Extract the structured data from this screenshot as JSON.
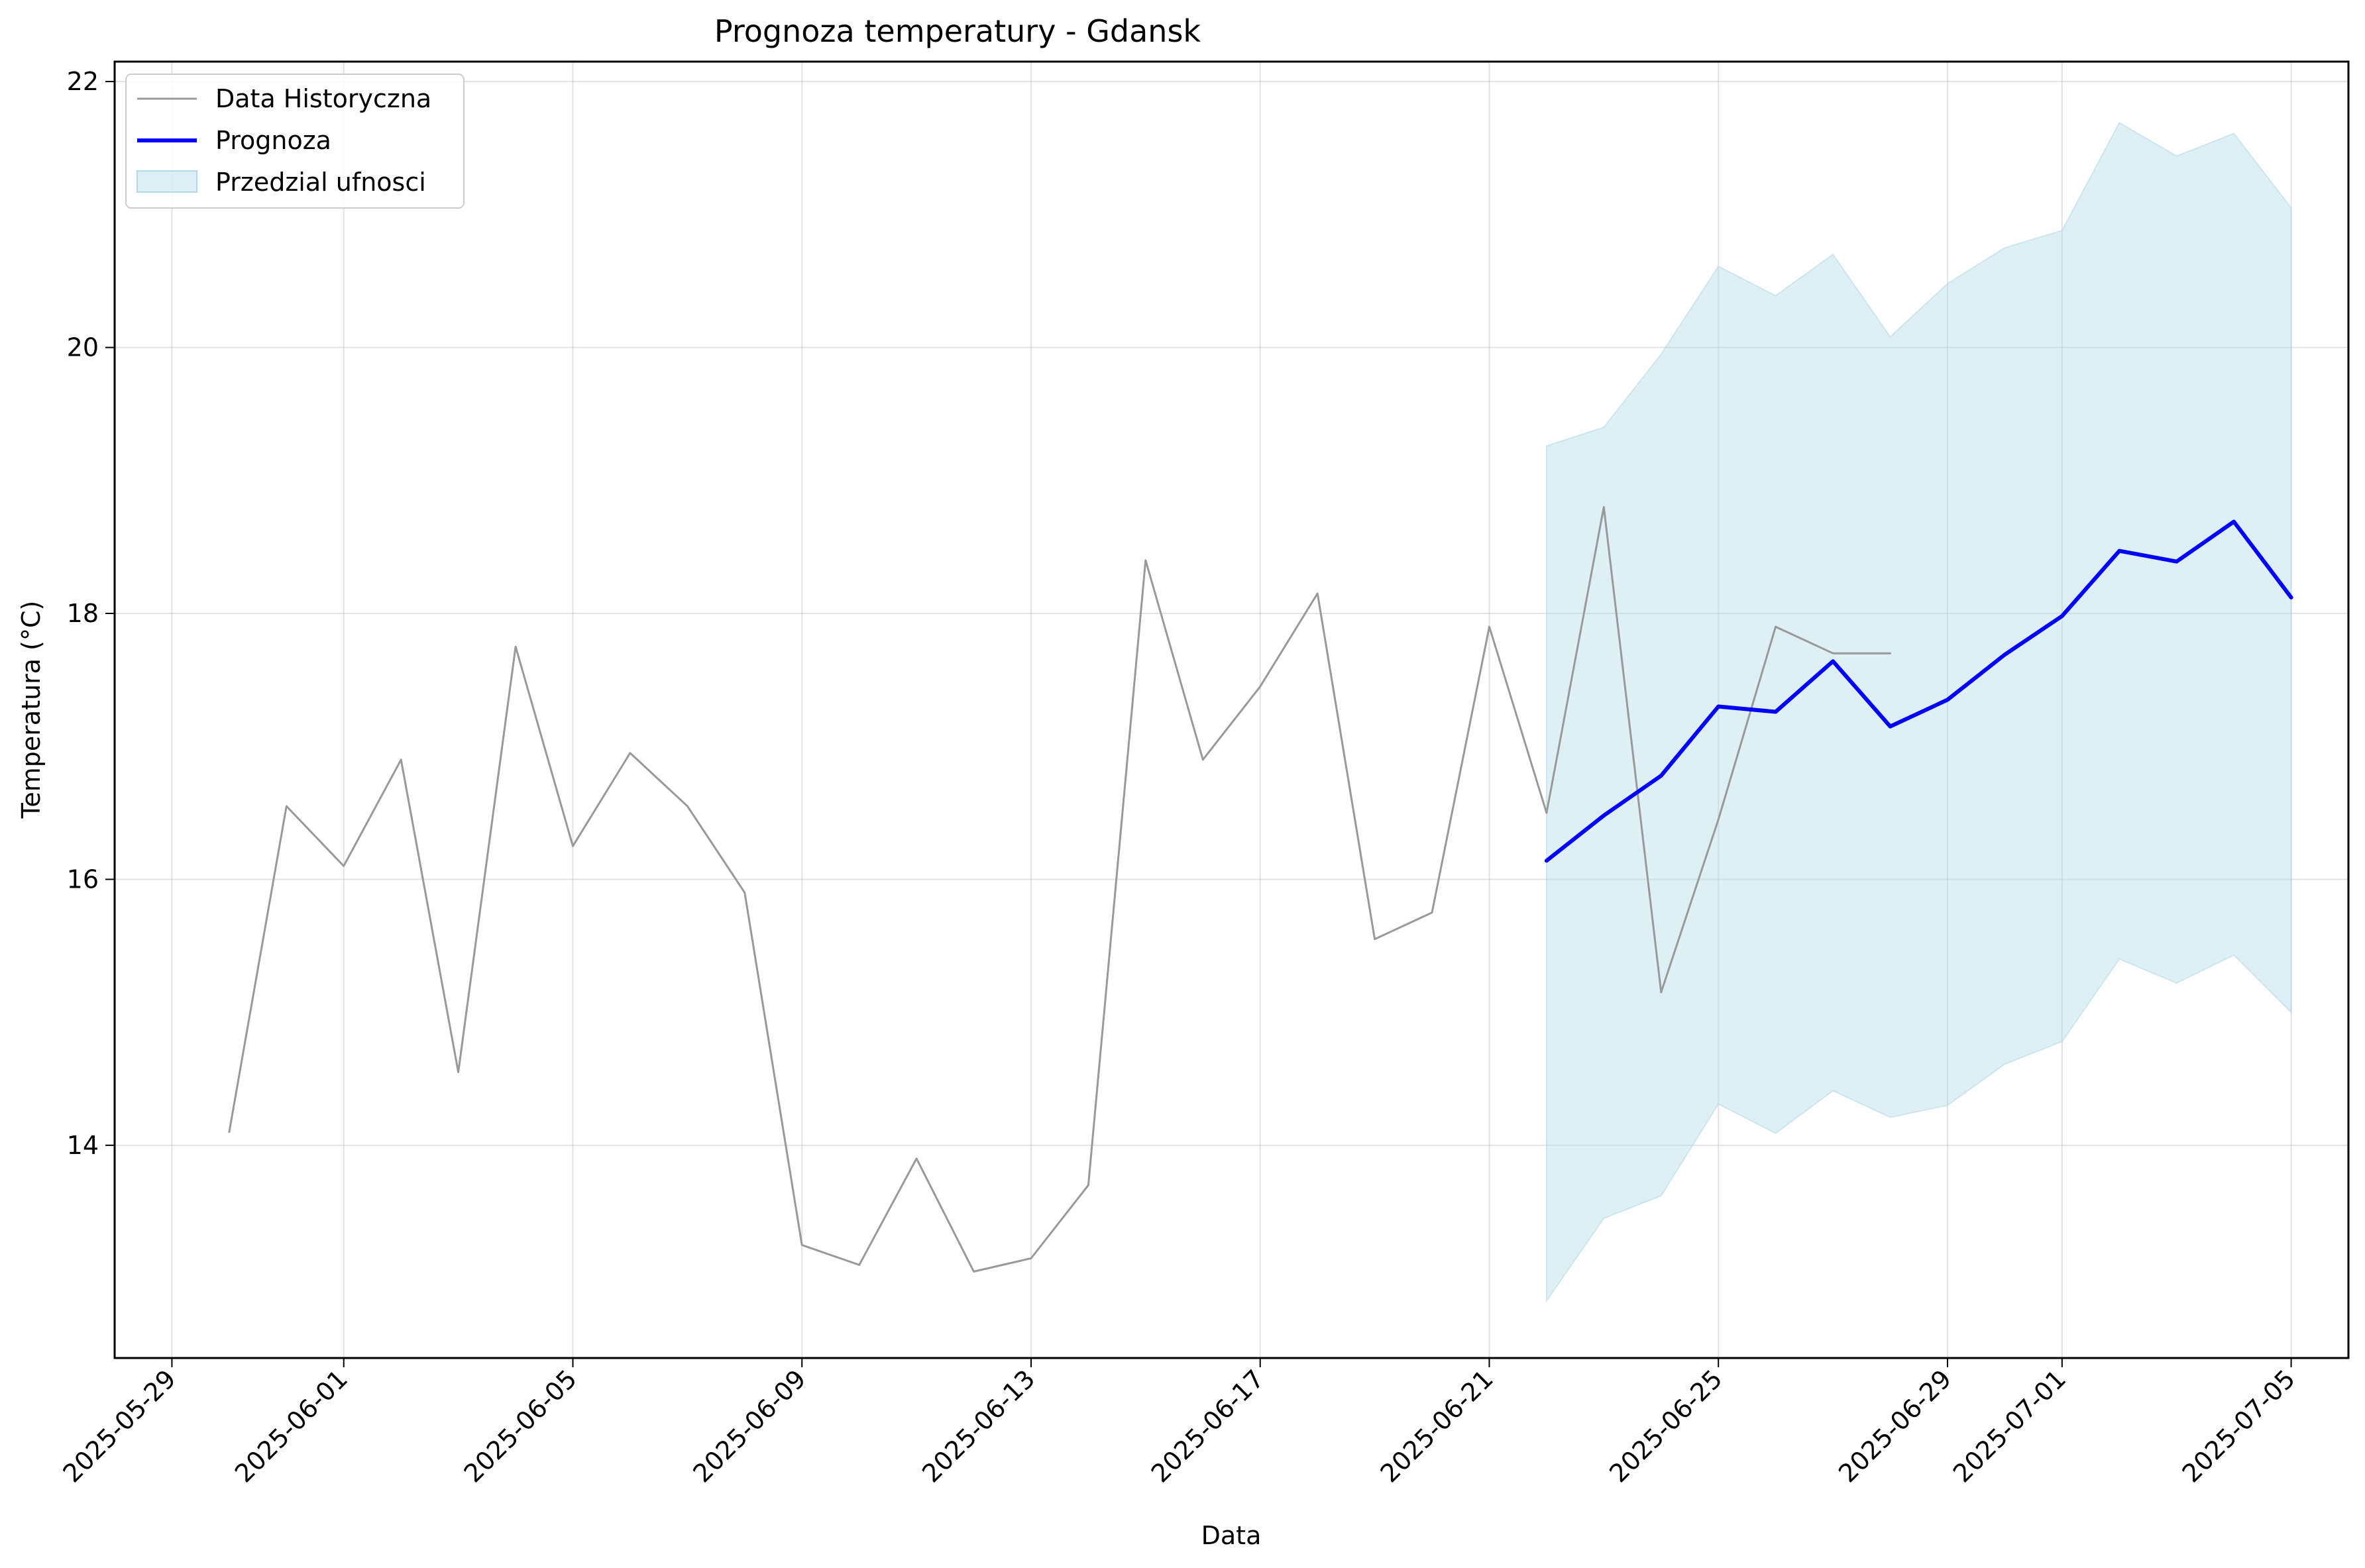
{
  "chart_data": {
    "type": "line",
    "title": "Prognoza temperatury - Gdansk",
    "xlabel": "Data",
    "ylabel": "Temperatura (°C)",
    "xlim": [
      "2025-05-28",
      "2025-07-06"
    ],
    "ylim": [
      12.4,
      22.15
    ],
    "x_ticks": [
      "2025-05-29",
      "2025-06-01",
      "2025-06-05",
      "2025-06-09",
      "2025-06-13",
      "2025-06-17",
      "2025-06-21",
      "2025-06-25",
      "2025-06-29",
      "2025-07-01",
      "2025-07-05"
    ],
    "y_ticks": [
      14,
      16,
      18,
      20,
      22
    ],
    "grid": true,
    "legend_position": "top-left",
    "colors": {
      "historical": "#999999",
      "forecast": "#0000ff",
      "confidence": "#add8e6"
    },
    "series": [
      {
        "name": "Data Historyczna",
        "kind": "line",
        "x": [
          "2025-05-30",
          "2025-05-31",
          "2025-06-01",
          "2025-06-02",
          "2025-06-03",
          "2025-06-04",
          "2025-06-05",
          "2025-06-06",
          "2025-06-07",
          "2025-06-08",
          "2025-06-09",
          "2025-06-10",
          "2025-06-11",
          "2025-06-12",
          "2025-06-13",
          "2025-06-14",
          "2025-06-15",
          "2025-06-16",
          "2025-06-17",
          "2025-06-18",
          "2025-06-19",
          "2025-06-20",
          "2025-06-21",
          "2025-06-22",
          "2025-06-23",
          "2025-06-24",
          "2025-06-25",
          "2025-06-26",
          "2025-06-27",
          "2025-06-28"
        ],
        "values": [
          14.1,
          16.55,
          16.1,
          16.9,
          14.55,
          17.75,
          16.25,
          16.95,
          16.55,
          15.9,
          13.25,
          13.1,
          13.9,
          13.05,
          13.15,
          13.7,
          18.4,
          16.9,
          17.45,
          18.15,
          15.55,
          15.75,
          17.9,
          16.5,
          18.8,
          15.15,
          16.45,
          17.9,
          17.7,
          17.7
        ]
      },
      {
        "name": "Prognoza",
        "kind": "line",
        "x": [
          "2025-06-22",
          "2025-06-23",
          "2025-06-24",
          "2025-06-25",
          "2025-06-26",
          "2025-06-27",
          "2025-06-28",
          "2025-06-29",
          "2025-06-30",
          "2025-07-01",
          "2025-07-02",
          "2025-07-03",
          "2025-07-04",
          "2025-07-05"
        ],
        "values": [
          16.14,
          16.48,
          16.78,
          17.3,
          17.26,
          17.64,
          17.15,
          17.35,
          17.69,
          17.98,
          18.47,
          18.39,
          18.69,
          18.12
        ]
      },
      {
        "name": "Przedzial ufnosci",
        "kind": "band",
        "x": [
          "2025-06-22",
          "2025-06-23",
          "2025-06-24",
          "2025-06-25",
          "2025-06-26",
          "2025-06-27",
          "2025-06-28",
          "2025-06-29",
          "2025-06-30",
          "2025-07-01",
          "2025-07-02",
          "2025-07-03",
          "2025-07-04",
          "2025-07-05"
        ],
        "lower": [
          12.83,
          13.45,
          13.62,
          14.31,
          14.09,
          14.41,
          14.21,
          14.3,
          14.61,
          14.78,
          15.4,
          15.22,
          15.43,
          15.0
        ],
        "upper": [
          19.26,
          19.4,
          19.95,
          20.61,
          20.39,
          20.7,
          20.08,
          20.48,
          20.75,
          20.88,
          21.69,
          21.44,
          21.61,
          21.05
        ]
      }
    ]
  }
}
